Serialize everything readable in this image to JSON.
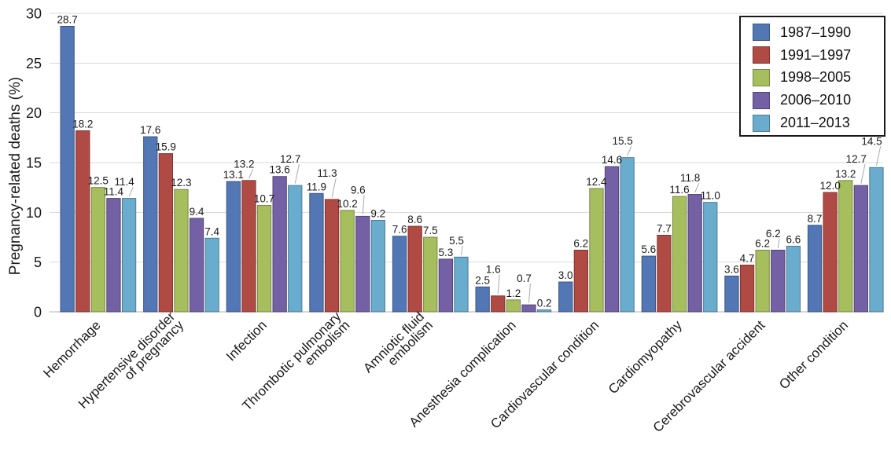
{
  "chart_data": {
    "type": "bar",
    "title": "",
    "xlabel": "",
    "ylabel": "Pregnancy-related deaths (%)",
    "ylim": [
      0,
      30
    ],
    "yticks": [
      0,
      5,
      10,
      15,
      20,
      25,
      30
    ],
    "grid": true,
    "value_labels": true,
    "legend_position": "top-right",
    "categories": [
      "Hemorrhage",
      "Hypertensive disorder\nof pregnancy",
      "Infection",
      "Thrombotic pulmonary\nembolism",
      "Amniotic fluid\nembolism",
      "Anesthesia complication",
      "Cardiovascular condition",
      "Cardiomyopathy",
      "Cerebrovascular accident",
      "Other condition"
    ],
    "series": [
      {
        "name": "1987–1990",
        "color": "#5277B4",
        "values": [
          28.7,
          17.6,
          13.1,
          11.9,
          7.6,
          2.5,
          3.0,
          5.6,
          3.6,
          8.7
        ]
      },
      {
        "name": "1991–1997",
        "color": "#B04A44",
        "values": [
          18.2,
          15.9,
          13.2,
          11.3,
          8.6,
          1.6,
          6.2,
          7.7,
          4.7,
          12.0
        ]
      },
      {
        "name": "1998–2005",
        "color": "#A6BE5D",
        "values": [
          12.5,
          12.3,
          10.7,
          10.2,
          7.5,
          1.2,
          12.4,
          11.6,
          6.2,
          13.2
        ]
      },
      {
        "name": "2006–2010",
        "color": "#7460A4",
        "values": [
          11.4,
          9.4,
          13.6,
          9.6,
          5.3,
          0.7,
          14.6,
          11.8,
          6.2,
          12.7
        ]
      },
      {
        "name": "2011–2013",
        "color": "#6AACCE",
        "values": [
          11.4,
          7.4,
          12.7,
          9.2,
          5.5,
          0.2,
          15.5,
          11.0,
          6.6,
          14.5
        ]
      }
    ],
    "style": {
      "background": "#ffffff",
      "grid_color": "#d9d9d9",
      "axis_color": "#b0b0b0",
      "text_color": "#1a1a1a",
      "leader_color": "#aaaaaa",
      "legend_border": "#1a1a1a"
    }
  }
}
